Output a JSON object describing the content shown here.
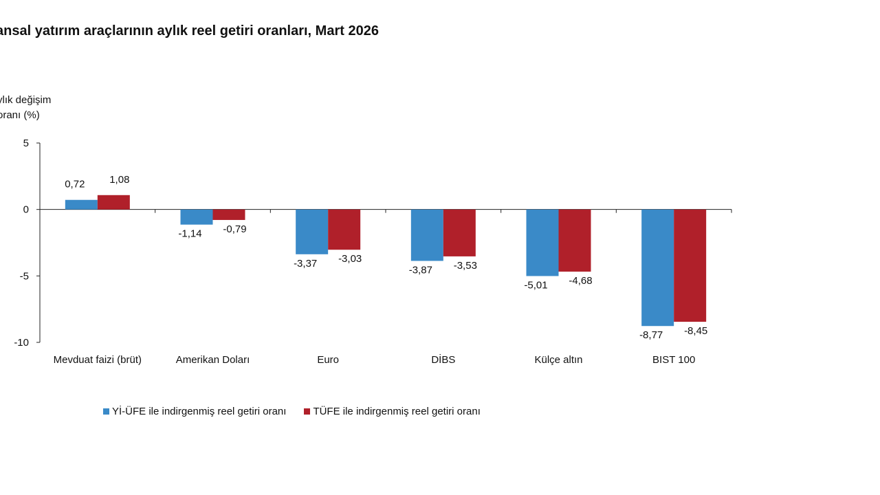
{
  "chart_data": {
    "type": "bar",
    "title": "ansal yatırım araçlarının aylık reel getiri oranları, Mart 2026",
    "ylabel_lines": [
      "ylık değişim",
      "oranı (%)"
    ],
    "xlabel": "",
    "ylim": [
      -10,
      5
    ],
    "yticks": [
      5,
      0,
      -5,
      -10
    ],
    "categories": [
      "Mevduat faizi (brüt)",
      "Amerikan Doları",
      "Euro",
      "DİBS",
      "Külçe altın",
      "BIST 100"
    ],
    "series": [
      {
        "name": "Yİ-ÜFE ile indirgenmiş reel getiri oranı",
        "color": "#3A8AC8",
        "values": [
          0.72,
          -1.14,
          -3.37,
          -3.87,
          -5.01,
          -8.77
        ],
        "labels": [
          "0,72",
          "-1,14",
          "-3,37",
          "-3,87",
          "-5,01",
          "-8,77"
        ]
      },
      {
        "name": "TÜFE ile indirgenmiş reel getiri oranı",
        "color": "#B0202A",
        "values": [
          1.08,
          -0.79,
          -3.03,
          -3.53,
          -4.68,
          -8.45
        ],
        "labels": [
          "1,08",
          "-0,79",
          "-3,03",
          "-3,53",
          "-4,68",
          "-8,45"
        ]
      }
    ],
    "grid": false,
    "legend_position": "bottom-left"
  }
}
